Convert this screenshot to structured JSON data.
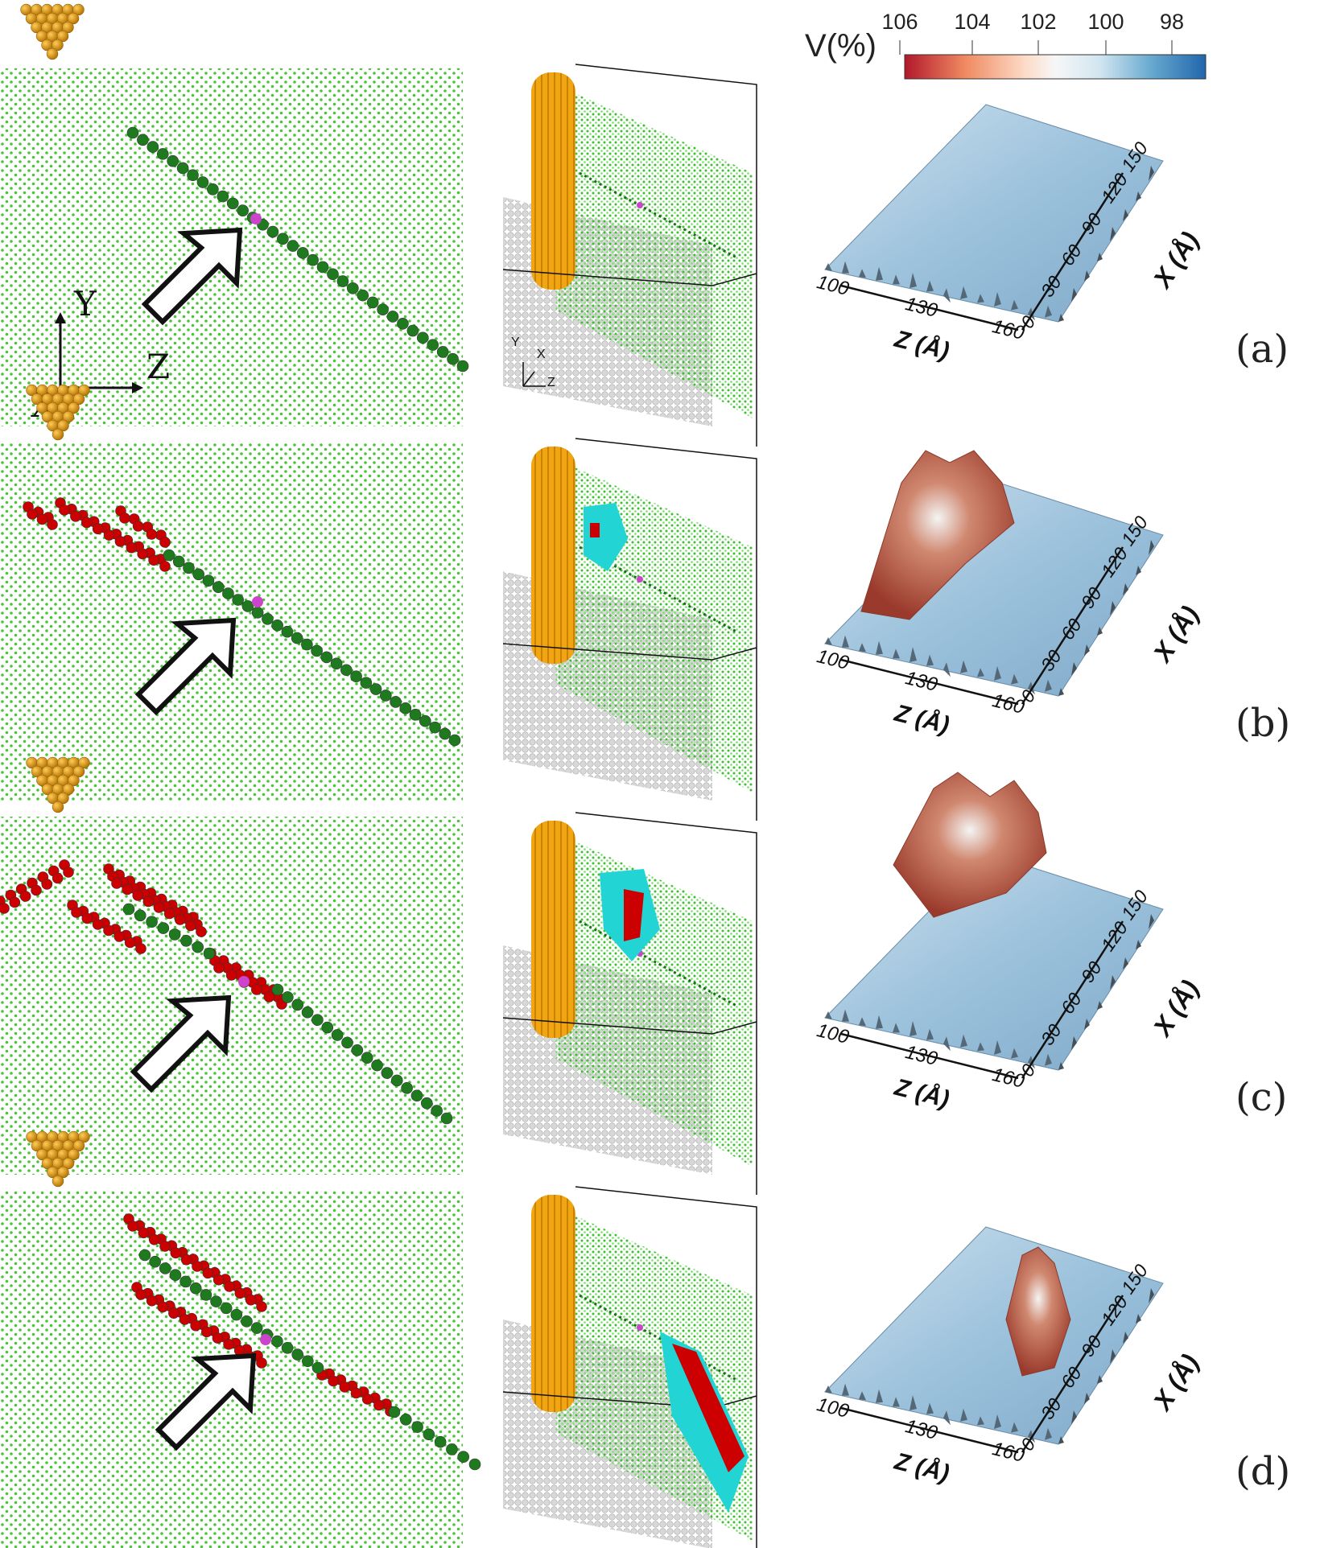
{
  "colorbar": {
    "label": "V(%)",
    "ticks": [
      "106",
      "104",
      "102",
      "100",
      "98"
    ],
    "colors": [
      "#b2182b",
      "#ef8a62",
      "#fddbc7",
      "#f7f7f7",
      "#d1e5f0",
      "#67a9cf",
      "#2166ac"
    ]
  },
  "axes2d": {
    "y": "Y",
    "z": "Z",
    "x": "X"
  },
  "axes3dmini": {
    "y": "Y",
    "x": "X",
    "z": "Z"
  },
  "surface_axes": {
    "z_label": "Z (Å)",
    "x_label": "X (Å)",
    "z_ticks": [
      "100",
      "130",
      "160"
    ],
    "x_ticks": [
      "0",
      "30",
      "60",
      "90",
      "120",
      "150"
    ]
  },
  "panels": [
    {
      "label": "(a)"
    },
    {
      "label": "(b)"
    },
    {
      "label": "(c)"
    },
    {
      "label": "(d)"
    }
  ],
  "colors": {
    "lattice": "#4cc43a",
    "dislocation": "#1f7a1f",
    "stacking_fault": "#cc0000",
    "tip": "#d68a00",
    "marker": "#cc44cc",
    "cyan": "#22d4d4",
    "substrate": "#c8c8c8"
  }
}
